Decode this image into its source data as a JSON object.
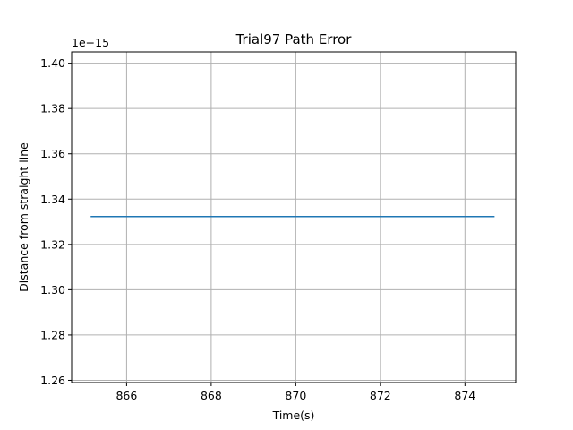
{
  "chart_data": {
    "type": "line",
    "title": "Trial97 Path Error",
    "xlabel": "Time(s)",
    "ylabel": "Distance from straight line",
    "y_offset_label": "1e−15",
    "xlim": [
      864.7,
      875.2
    ],
    "ylim": [
      1.259,
      1.405
    ],
    "x_ticks": [
      866,
      868,
      870,
      872,
      874
    ],
    "x_tick_labels": [
      "866",
      "868",
      "870",
      "872",
      "874"
    ],
    "y_ticks": [
      1.26,
      1.28,
      1.3,
      1.32,
      1.34,
      1.36,
      1.38,
      1.4
    ],
    "y_tick_labels": [
      "1.26",
      "1.28",
      "1.30",
      "1.32",
      "1.34",
      "1.36",
      "1.38",
      "1.40"
    ],
    "grid": true,
    "series": [
      {
        "color": "#1f77b4",
        "x": [
          865.15,
          874.7
        ],
        "y": [
          1.3323,
          1.3323
        ]
      }
    ]
  }
}
